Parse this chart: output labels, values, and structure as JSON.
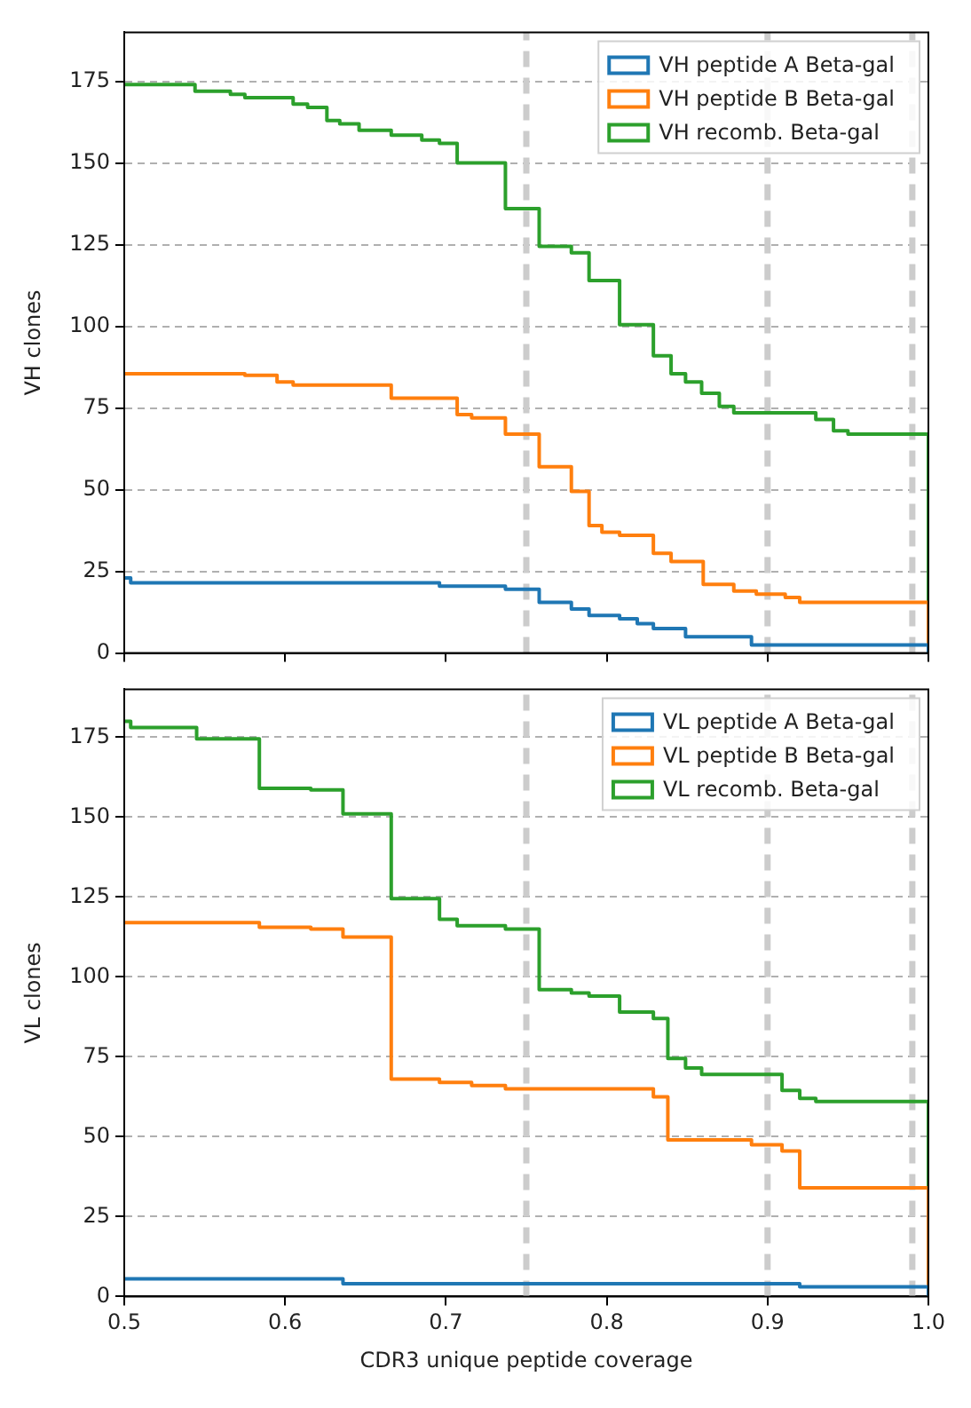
{
  "chart_data": [
    {
      "type": "step",
      "ylabel": "VH clones",
      "xlim": [
        0.5,
        1.0
      ],
      "xticks": [
        0.5,
        0.6,
        0.7,
        0.8,
        0.9,
        1
      ],
      "ylim": [
        0,
        190
      ],
      "yticks": [
        0,
        25,
        50,
        75,
        100,
        125,
        150,
        175
      ],
      "grid": "y",
      "legend": "top right",
      "tick_labels": "y",
      "ref_lines": [
        {
          "axis": "x",
          "value": 0.75,
          "color": "#cccccc",
          "line_style": "dashed"
        },
        {
          "axis": "x",
          "value": 0.9,
          "color": "#cccccc",
          "line_style": "dashed"
        },
        {
          "axis": "x",
          "value": 0.99,
          "color": "#cccccc",
          "line_style": "dashed"
        }
      ],
      "series": [
        {
          "name": "VH peptide A Beta-gal",
          "color": "#1f77b4",
          "x": [
            0.5,
            0.504,
            0.696,
            0.737,
            0.758,
            0.778,
            0.789,
            0.808,
            0.819,
            0.829,
            0.849,
            0.89,
            1.0
          ],
          "values": [
            23,
            21.5,
            20.5,
            19.5,
            15.5,
            13.5,
            11.5,
            10.5,
            9,
            7.5,
            5,
            2.5,
            0
          ]
        },
        {
          "name": "VH peptide B Beta-gal",
          "color": "#ff7f0e",
          "x": [
            0.5,
            0.575,
            0.595,
            0.605,
            0.666,
            0.707,
            0.716,
            0.737,
            0.758,
            0.778,
            0.789,
            0.797,
            0.808,
            0.829,
            0.84,
            0.86,
            0.879,
            0.893,
            0.911,
            0.92,
            1.0
          ],
          "values": [
            85.5,
            85,
            83,
            82,
            78,
            73,
            72,
            67,
            57,
            49.5,
            39,
            37,
            36,
            30.5,
            28,
            21,
            19,
            18,
            17,
            15.5,
            0
          ]
        },
        {
          "name": "VH recomb. Beta-gal",
          "color": "#2ca02c",
          "x": [
            0.5,
            0.544,
            0.566,
            0.575,
            0.605,
            0.614,
            0.626,
            0.634,
            0.646,
            0.666,
            0.685,
            0.696,
            0.707,
            0.737,
            0.758,
            0.778,
            0.789,
            0.808,
            0.829,
            0.84,
            0.849,
            0.859,
            0.87,
            0.879,
            0.93,
            0.941,
            0.95,
            1.0
          ],
          "values": [
            174,
            172,
            171,
            170,
            168,
            167,
            163,
            162,
            160,
            158.5,
            157,
            156,
            150,
            136,
            124.5,
            122.5,
            114,
            100.5,
            91,
            85.5,
            83,
            79.5,
            75.5,
            73.5,
            71.5,
            68,
            67,
            0
          ]
        }
      ]
    },
    {
      "type": "step",
      "ylabel": "VL clones",
      "xlabel": "CDR3 unique peptide coverage",
      "xlim": [
        0.5,
        1.0
      ],
      "xticks": [
        0.5,
        0.6,
        0.7,
        0.8,
        0.9,
        {
          "value": 1.0,
          "label": "1.0"
        }
      ],
      "ylim": [
        0,
        190
      ],
      "yticks": [
        0,
        25,
        50,
        75,
        100,
        125,
        150,
        175
      ],
      "grid": "y",
      "legend": "top right",
      "ref_lines": [
        {
          "axis": "x",
          "value": 0.75,
          "color": "#cccccc",
          "line_style": "dashed"
        },
        {
          "axis": "x",
          "value": 0.9,
          "color": "#cccccc",
          "line_style": "dashed"
        },
        {
          "axis": "x",
          "value": 0.99,
          "color": "#cccccc",
          "line_style": "dashed"
        }
      ],
      "series": [
        {
          "name": "VL peptide A Beta-gal",
          "color": "#1f77b4",
          "x": [
            0.5,
            0.636,
            0.92,
            1.0
          ],
          "values": [
            5.5,
            4,
            3,
            0
          ]
        },
        {
          "name": "VL peptide B Beta-gal",
          "color": "#ff7f0e",
          "x": [
            0.5,
            0.584,
            0.616,
            0.636,
            0.666,
            0.696,
            0.716,
            0.737,
            0.829,
            0.838,
            0.89,
            0.909,
            0.92,
            1.0
          ],
          "values": [
            117,
            115.5,
            115,
            112.5,
            68,
            67,
            66,
            65,
            62.5,
            49,
            47.5,
            45.5,
            34,
            0
          ]
        },
        {
          "name": "VL recomb. Beta-gal",
          "color": "#2ca02c",
          "x": [
            0.5,
            0.504,
            0.545,
            0.584,
            0.616,
            0.636,
            0.666,
            0.696,
            0.707,
            0.737,
            0.758,
            0.778,
            0.789,
            0.808,
            0.829,
            0.838,
            0.849,
            0.859,
            0.909,
            0.92,
            0.93,
            1.0
          ],
          "values": [
            180,
            178,
            174.5,
            159,
            158.5,
            151,
            124.5,
            118,
            116,
            115,
            96,
            95,
            94,
            89,
            87,
            74.5,
            71.5,
            69.5,
            64.5,
            62,
            61,
            0
          ]
        }
      ]
    }
  ]
}
